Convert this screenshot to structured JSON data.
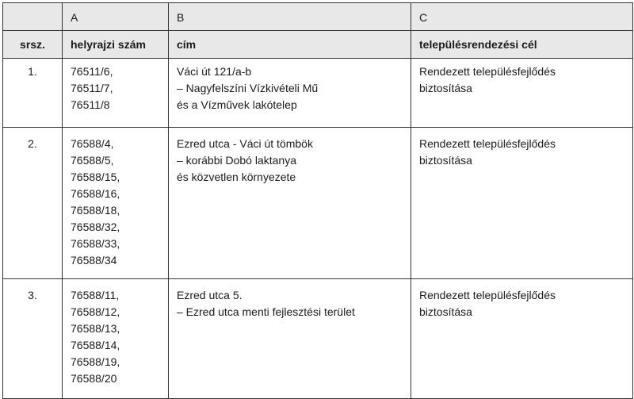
{
  "table": {
    "column_letters": [
      "",
      "A",
      "B",
      "C"
    ],
    "headers": [
      "srsz.",
      "helyrajzi szám",
      "cím",
      "településrendezési cél"
    ],
    "rows": [
      {
        "num": "1.",
        "parcels": [
          "76511/6,",
          "76511/7,",
          "76511/8"
        ],
        "address": [
          "Váci út 121/a-b",
          "– Nagyfelszíni Vízkivételi Mű",
          "és a Vízművek lakótelep"
        ],
        "goal": [
          "Rendezett településfejlődés",
          "biztosítása"
        ]
      },
      {
        "num": "2.",
        "parcels": [
          "76588/4,",
          "76588/5,",
          "76588/15,",
          "76588/16,",
          "76588/18,",
          "76588/32,",
          "76588/33,",
          "76588/34"
        ],
        "address": [
          "Ezred utca - Váci út tömbök",
          "– korábbi Dobó laktanya",
          "és közvetlen környezete"
        ],
        "goal": [
          "Rendezett településfejlődés",
          "biztosítása"
        ]
      },
      {
        "num": "3.",
        "parcels": [
          "76588/11,",
          "76588/12,",
          "76588/13,",
          "76588/14,",
          "76588/19,",
          "76588/20"
        ],
        "address": [
          "Ezred utca 5.",
          "– Ezred utca menti fejlesztési terület"
        ],
        "goal": [
          "Rendezett településfejlődés",
          "biztosítása"
        ]
      }
    ]
  }
}
